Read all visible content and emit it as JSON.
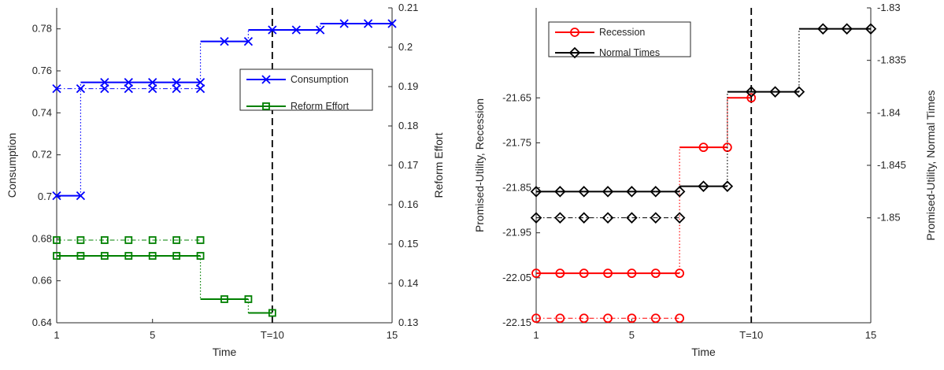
{
  "chart_data": [
    {
      "type": "line",
      "title": "",
      "xlabel": "Time",
      "ylabel_left": "Consumption",
      "ylabel_right": "Reform Effort",
      "xlim": [
        1,
        15
      ],
      "ylim_left": [
        0.64,
        0.79
      ],
      "ylim_right": [
        0.13,
        0.21
      ],
      "x_ticks": [
        1,
        5,
        10,
        15
      ],
      "x_tick_labels": [
        "1",
        "5",
        "T=10",
        "15"
      ],
      "y_ticks_left": [
        "0.64",
        "0.66",
        "0.68",
        "0.7",
        "0.72",
        "0.74",
        "0.76",
        "0.78"
      ],
      "y_ticks_right": [
        "0.13",
        "0.14",
        "0.15",
        "0.16",
        "0.17",
        "0.18",
        "0.19",
        "0.2",
        "0.21"
      ],
      "vline_x": 10,
      "legend": {
        "placement": "upper-right",
        "entries": [
          "Consumption",
          "Reform Effort"
        ]
      },
      "colors": {
        "consumption": "#0000ff",
        "reform": "#008000"
      },
      "series": [
        {
          "name": "Consumption",
          "axis": "left",
          "marker": "x",
          "style": "solid",
          "x": [
            1,
            2,
            3,
            4,
            5,
            6,
            7,
            8,
            9,
            10,
            11,
            12,
            13,
            14,
            15
          ],
          "y": [
            0.7005,
            0.7005,
            0.7545,
            0.7545,
            0.7545,
            0.7545,
            0.7545,
            0.774,
            0.774,
            0.7795,
            0.7795,
            0.7795,
            0.7825,
            0.7825,
            0.7825
          ]
        },
        {
          "axis": "left",
          "marker": "x",
          "style": "dashdot",
          "x": [
            1,
            2,
            3,
            4,
            5,
            6,
            7
          ],
          "y": [
            0.7515,
            0.7515,
            0.7515,
            0.7515,
            0.7515,
            0.7515,
            0.7515
          ]
        },
        {
          "name": "Reform Effort",
          "axis": "right",
          "marker": "square",
          "style": "solid",
          "x": [
            1,
            2,
            3,
            4,
            5,
            6,
            7,
            8,
            9,
            10
          ],
          "y": [
            0.147,
            0.147,
            0.147,
            0.147,
            0.147,
            0.147,
            0.147,
            0.136,
            0.136,
            0.1325
          ]
        },
        {
          "axis": "right",
          "marker": "square",
          "style": "dashdot",
          "x": [
            1,
            2,
            3,
            4,
            5,
            6,
            7
          ],
          "y": [
            0.151,
            0.151,
            0.151,
            0.151,
            0.151,
            0.151,
            0.151
          ]
        }
      ]
    },
    {
      "type": "line",
      "title": "",
      "xlabel": "Time",
      "ylabel_left": "Promised-Utility, Recession",
      "ylabel_right": "Promised-Utility, Normal Times",
      "xlim": [
        1,
        15
      ],
      "ylim_left": [
        -22.15,
        -21.45
      ],
      "ylim_right": [
        -1.86,
        -1.83
      ],
      "x_ticks": [
        1,
        5,
        10,
        15
      ],
      "x_tick_labels": [
        "1",
        "5",
        "T=10",
        "15"
      ],
      "y_ticks_left": [
        "-22.15",
        "-22.05",
        "-21.95",
        "-21.85",
        "-21.75",
        "-21.65"
      ],
      "y_ticks_right": [
        "-1.85",
        "-1.845",
        "-1.84",
        "-1.835",
        "-1.83"
      ],
      "vline_x": 10,
      "legend": {
        "placement": "upper-left",
        "entries": [
          "Recession",
          "Normal Times"
        ]
      },
      "colors": {
        "recession": "#ff0000",
        "normal": "#000000"
      },
      "series": [
        {
          "name": "Recession",
          "axis": "left",
          "marker": "circle",
          "style": "solid",
          "x": [
            1,
            2,
            3,
            4,
            5,
            6,
            7,
            8,
            9,
            10
          ],
          "y": [
            -22.04,
            -22.04,
            -22.04,
            -22.04,
            -22.04,
            -22.04,
            -22.04,
            -21.76,
            -21.76,
            -21.65
          ]
        },
        {
          "axis": "left",
          "marker": "circle",
          "style": "dashdot",
          "x": [
            1,
            2,
            3,
            4,
            5,
            6,
            7
          ],
          "y": [
            -22.14,
            -22.14,
            -22.14,
            -22.14,
            -22.14,
            -22.14,
            -22.14
          ]
        },
        {
          "name": "Normal Times",
          "axis": "right",
          "marker": "diamond",
          "style": "solid",
          "x": [
            1,
            2,
            3,
            4,
            5,
            6,
            7,
            8,
            9,
            10,
            11,
            12,
            13,
            14,
            15
          ],
          "y": [
            -1.8475,
            -1.8475,
            -1.8475,
            -1.8475,
            -1.8475,
            -1.8475,
            -1.8475,
            -1.847,
            -1.847,
            -1.838,
            -1.838,
            -1.838,
            -1.832,
            -1.832,
            -1.832
          ]
        },
        {
          "axis": "right",
          "marker": "diamond",
          "style": "dashdot",
          "x": [
            1,
            2,
            3,
            4,
            5,
            6,
            7
          ],
          "y": [
            -1.85,
            -1.85,
            -1.85,
            -1.85,
            -1.85,
            -1.85,
            -1.85
          ]
        }
      ]
    }
  ]
}
